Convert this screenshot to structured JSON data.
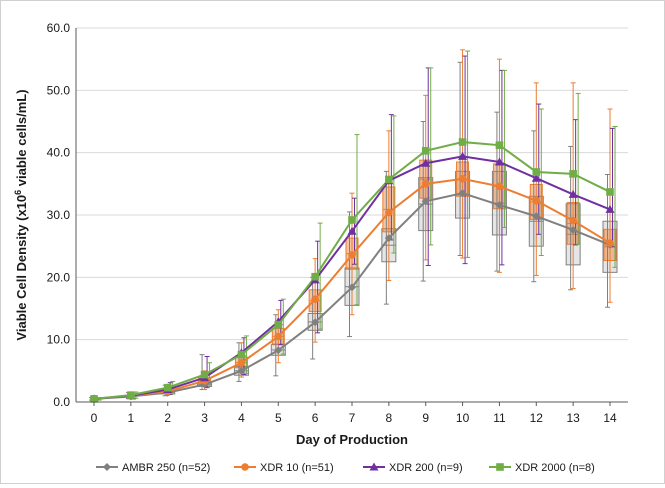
{
  "chart_data": {
    "type": "line",
    "xlabel": "Day of Production",
    "ylabel_prefix": "Viable Cell Density (x10",
    "ylabel_sup": "6",
    "ylabel_suffix": " viable cells/mL)",
    "xlim": [
      0,
      14
    ],
    "ylim": [
      0,
      60
    ],
    "x_ticks": [
      0,
      1,
      2,
      3,
      4,
      5,
      6,
      7,
      8,
      9,
      10,
      11,
      12,
      13,
      14
    ],
    "y_ticks": [
      "0.0",
      "10.0",
      "20.0",
      "30.0",
      "40.0",
      "50.0",
      "60.0"
    ],
    "grid": "horizontal",
    "legend_position": "bottom",
    "series": [
      {
        "name": "AMBR 250 (n=52)",
        "color": "#808080",
        "marker": "diamond",
        "x": [
          0,
          1,
          2,
          3,
          4,
          5,
          6,
          7,
          8,
          9,
          10,
          11,
          12,
          13,
          14
        ],
        "values": [
          0.5,
          0.9,
          1.5,
          2.8,
          5.0,
          8.3,
          12.8,
          18.4,
          26.3,
          32.2,
          33.5,
          31.6,
          29.8,
          27.6,
          25.2
        ],
        "err_low": [
          0.3,
          0.6,
          1.0,
          2.0,
          3.3,
          4.2,
          6.9,
          10.5,
          15.7,
          19.4,
          23.5,
          21.0,
          19.3,
          18.0,
          15.2
        ],
        "err_high": [
          0.7,
          1.5,
          2.7,
          7.6,
          9.5,
          14.0,
          20.0,
          30.5,
          37.0,
          45.0,
          54.5,
          46.5,
          43.5,
          41.0,
          36.5
        ],
        "box_low": [
          0.4,
          0.8,
          1.3,
          2.5,
          4.3,
          7.5,
          11.5,
          15.5,
          22.5,
          27.5,
          29.5,
          26.8,
          25.0,
          22.0,
          20.8
        ],
        "box_high": [
          0.6,
          1.1,
          1.8,
          3.2,
          5.7,
          9.2,
          14.2,
          21.5,
          27.8,
          36.0,
          37.0,
          37.0,
          33.0,
          31.8,
          29.0
        ]
      },
      {
        "name": "XDR 10 (n=51)",
        "color": "#ED7D31",
        "marker": "circle",
        "x": [
          0,
          1,
          2,
          3,
          4,
          5,
          6,
          7,
          8,
          9,
          10,
          11,
          12,
          13,
          14
        ],
        "values": [
          0.5,
          1.0,
          1.7,
          3.4,
          6.3,
          10.5,
          16.5,
          23.6,
          30.4,
          35.0,
          35.8,
          34.6,
          32.3,
          29.1,
          25.5
        ],
        "err_low": [
          0.3,
          0.6,
          1.1,
          2.0,
          4.0,
          6.3,
          9.6,
          14.0,
          19.5,
          22.8,
          23.1,
          20.8,
          20.3,
          18.2,
          16.0
        ],
        "err_high": [
          0.7,
          1.4,
          2.5,
          5.0,
          9.5,
          14.8,
          23.0,
          33.5,
          43.5,
          49.2,
          56.5,
          55.0,
          51.2,
          51.2,
          47.0
        ],
        "box_low": [
          0.4,
          0.9,
          1.5,
          3.0,
          5.5,
          9.3,
          14.5,
          21.3,
          27.3,
          32.7,
          33.0,
          31.0,
          29.3,
          25.3,
          22.7
        ],
        "box_high": [
          0.6,
          1.2,
          2.0,
          3.9,
          7.2,
          11.8,
          18.0,
          26.3,
          34.5,
          38.8,
          38.5,
          38.2,
          34.9,
          32.0,
          27.7
        ]
      },
      {
        "name": "XDR 200 (n=9)",
        "color": "#7030A0",
        "marker": "triangle",
        "x": [
          0,
          1,
          2,
          3,
          4,
          5,
          6,
          7,
          8,
          9,
          10,
          11,
          12,
          13,
          14
        ],
        "values": [
          0.5,
          1.0,
          2.0,
          3.9,
          7.9,
          12.9,
          19.6,
          27.4,
          35.5,
          38.3,
          39.4,
          38.5,
          35.9,
          33.3,
          30.9
        ],
        "err_low": [
          0.3,
          0.5,
          1.2,
          2.3,
          4.4,
          9.2,
          11.1,
          22.1,
          26.0,
          21.9,
          22.2,
          22.0,
          26.9,
          25.2,
          24.9
        ],
        "err_high": [
          0.7,
          1.6,
          3.1,
          7.3,
          10.3,
          16.3,
          25.8,
          32.7,
          46.1,
          53.6,
          55.5,
          53.2,
          47.8,
          45.3,
          43.9
        ],
        "box_low": [
          0.5,
          1.0,
          2.0,
          3.9,
          7.9,
          12.9,
          19.6,
          27.4,
          35.5,
          38.3,
          39.4,
          38.5,
          35.9,
          33.3,
          30.9
        ],
        "box_high": [
          0.5,
          1.0,
          2.0,
          3.9,
          7.9,
          12.9,
          19.6,
          27.4,
          35.5,
          38.3,
          39.4,
          38.5,
          35.9,
          33.3,
          30.9
        ]
      },
      {
        "name": "XDR 2000 (n=8)",
        "color": "#70AD47",
        "marker": "square",
        "x": [
          0,
          1,
          2,
          3,
          4,
          5,
          6,
          7,
          8,
          9,
          10,
          11,
          12,
          13,
          14
        ],
        "values": [
          0.5,
          1.1,
          2.3,
          4.4,
          7.6,
          12.4,
          20.1,
          29.2,
          35.7,
          40.3,
          41.7,
          41.2,
          36.9,
          36.6,
          33.7
        ],
        "err_low": [
          0.3,
          0.6,
          1.3,
          2.7,
          4.6,
          7.7,
          11.7,
          15.6,
          23.9,
          25.2,
          23.2,
          28.0,
          23.5,
          25.3,
          21.6
        ],
        "err_high": [
          0.7,
          1.6,
          3.3,
          6.3,
          10.6,
          16.5,
          28.7,
          42.9,
          45.9,
          53.6,
          56.3,
          53.2,
          47.0,
          49.5,
          44.2
        ],
        "box_low": [
          0.5,
          1.1,
          2.3,
          4.4,
          7.6,
          12.4,
          20.1,
          29.2,
          35.7,
          40.3,
          41.7,
          41.2,
          36.9,
          36.6,
          33.7
        ],
        "box_high": [
          0.5,
          1.1,
          2.3,
          4.4,
          7.6,
          12.4,
          20.1,
          29.2,
          35.7,
          40.3,
          41.7,
          41.2,
          36.9,
          36.6,
          33.7
        ]
      }
    ]
  }
}
